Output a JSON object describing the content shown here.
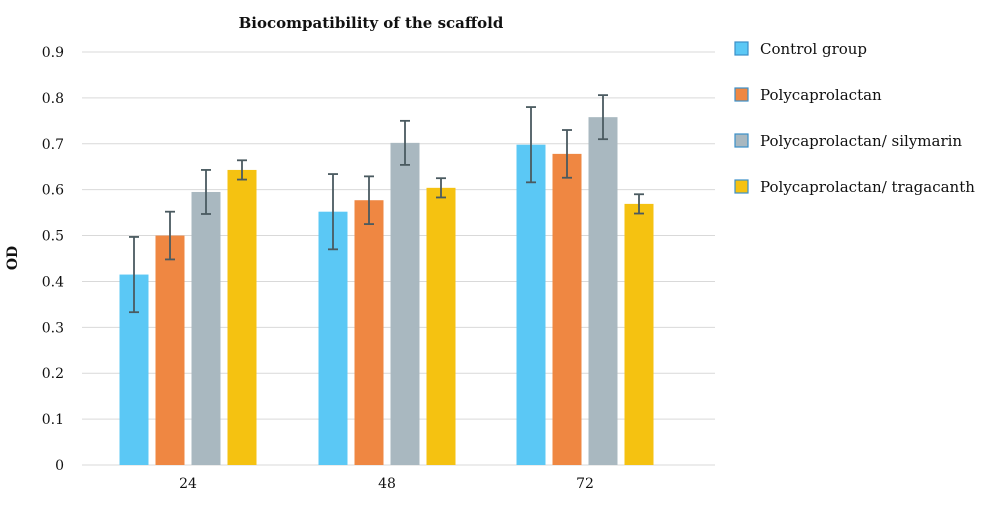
{
  "chart_data": {
    "type": "bar",
    "title": "Biocompatibility of the scaffold",
    "xlabel": "",
    "ylabel": "OD",
    "ylim": [
      0,
      0.9
    ],
    "yticks": [
      "0",
      "0.1",
      "0.2",
      "0.3",
      "0.4",
      "0.5",
      "0.6",
      "0.7",
      "0.8",
      "0.9"
    ],
    "categories": [
      "24",
      "48",
      "72"
    ],
    "grid": true,
    "legend_position": "right",
    "series": [
      {
        "name": "Control group",
        "color": "#5bc8f5",
        "values": [
          0.415,
          0.552,
          0.698
        ],
        "errors": [
          0.082,
          0.082,
          0.082
        ]
      },
      {
        "name": "Polycaprolactan",
        "color": "#ef8742",
        "values": [
          0.5,
          0.577,
          0.678
        ],
        "errors": [
          0.052,
          0.052,
          0.052
        ]
      },
      {
        "name": "Polycaprolactan/ silymarin",
        "color": "#a9b8c0",
        "values": [
          0.595,
          0.702,
          0.758
        ],
        "errors": [
          0.048,
          0.048,
          0.048
        ]
      },
      {
        "name": "Polycaprolactan/ tragacanth",
        "color": "#f5c211",
        "values": [
          0.643,
          0.604,
          0.569
        ],
        "errors": [
          0.021,
          0.021,
          0.021
        ]
      }
    ]
  }
}
